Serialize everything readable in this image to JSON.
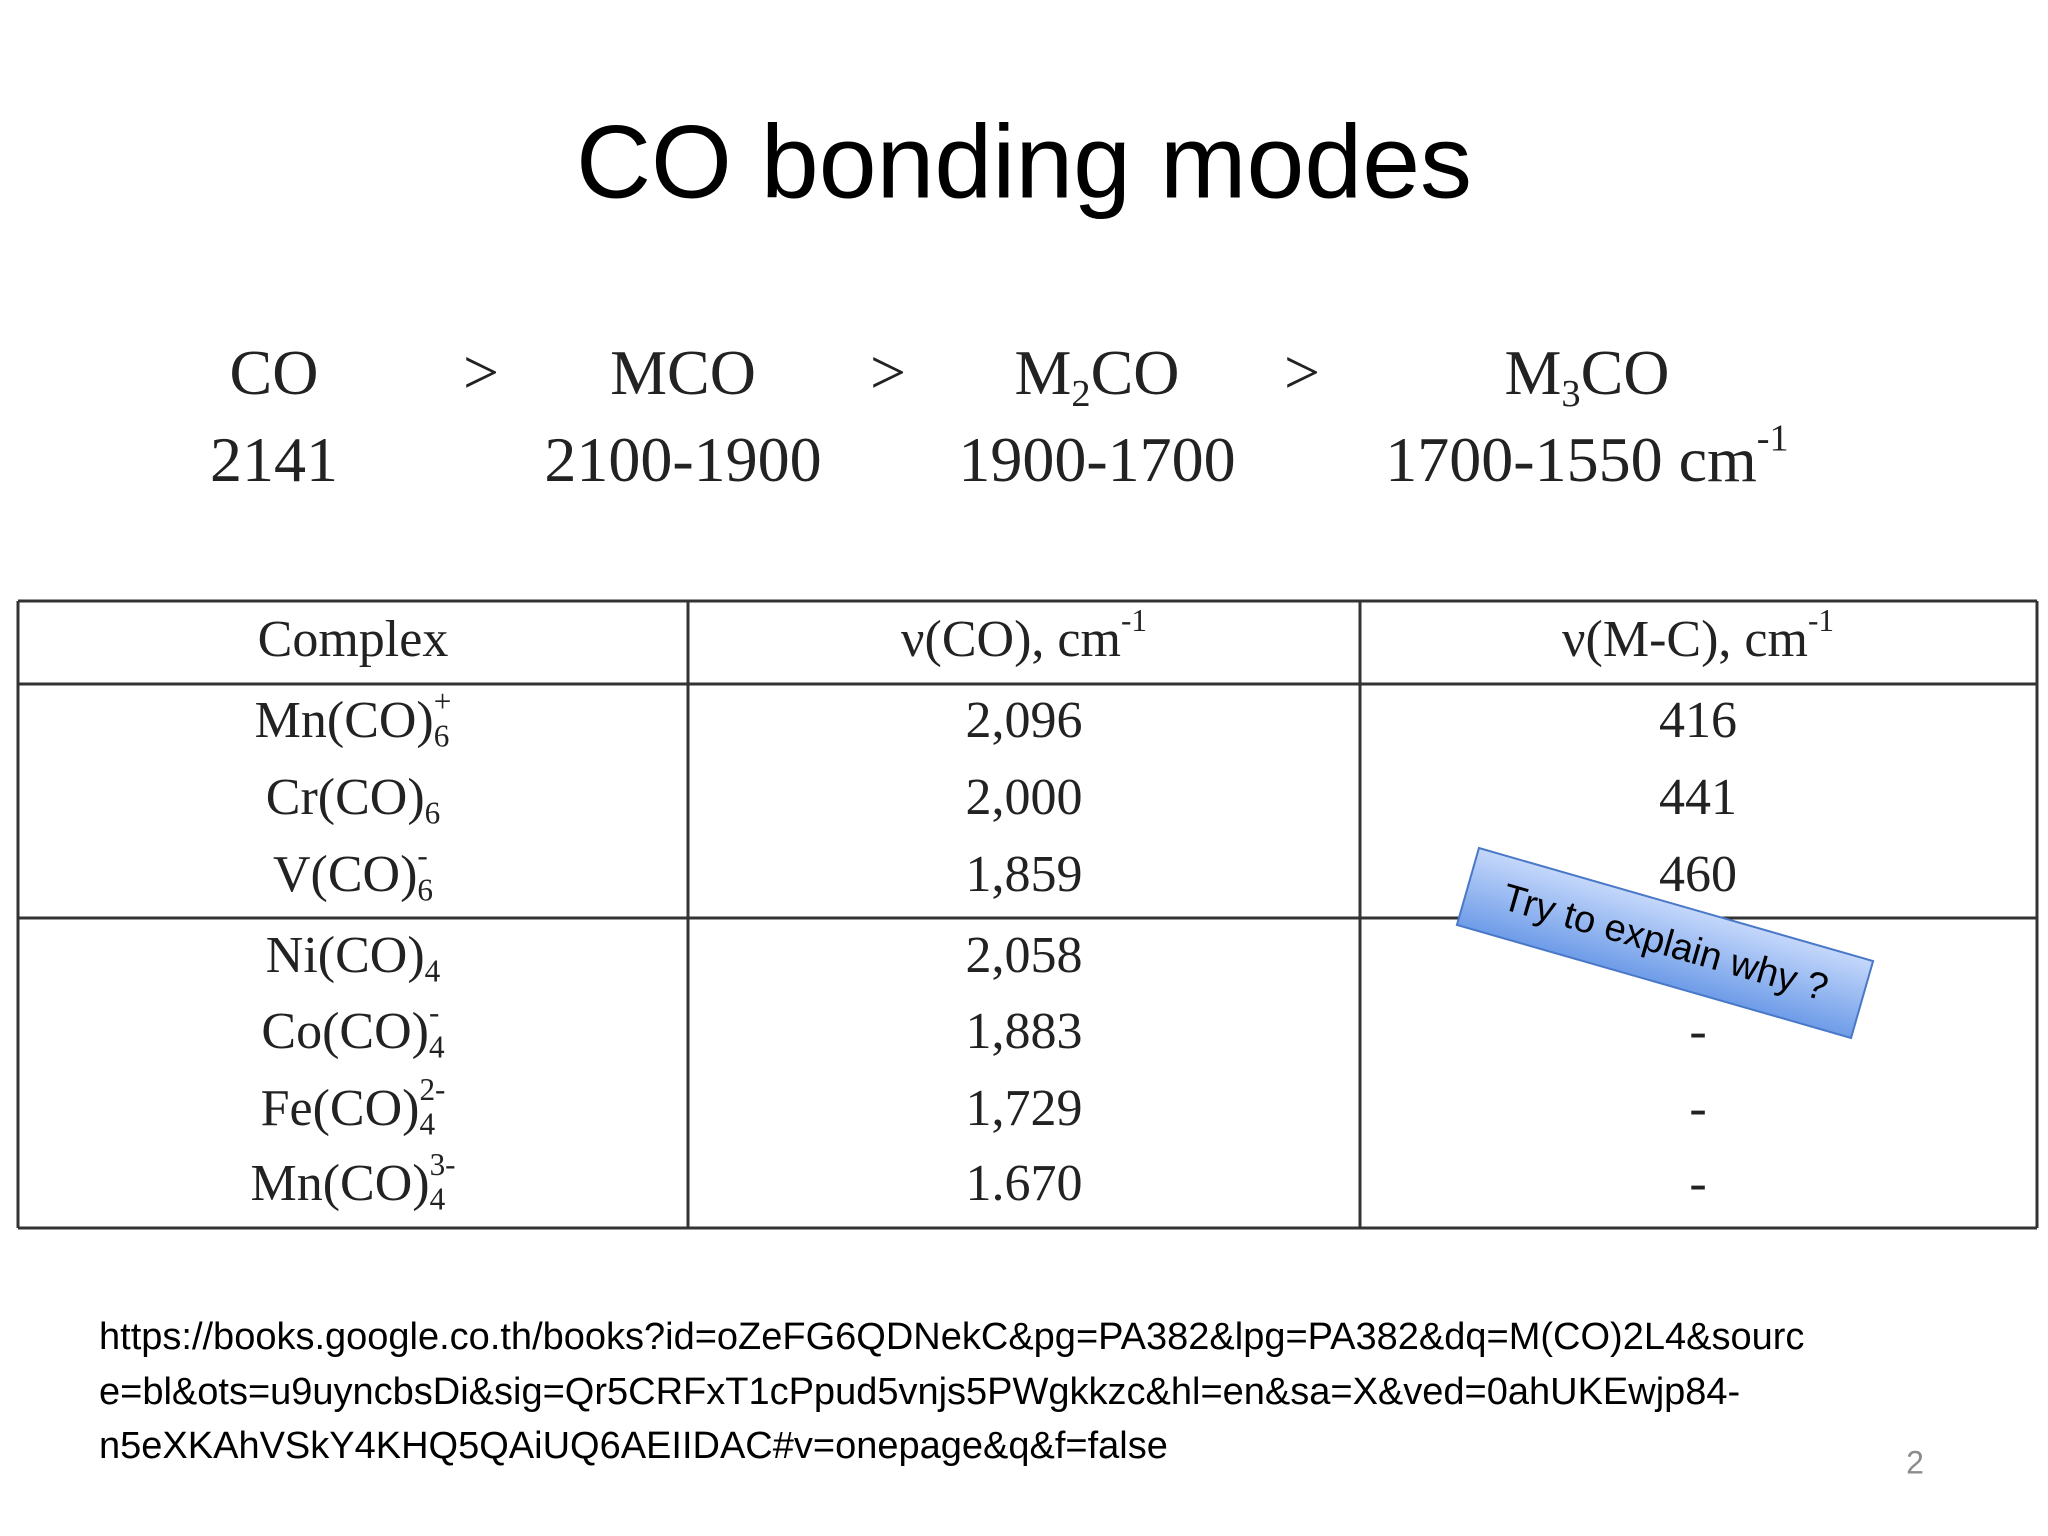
{
  "title": "CO bonding modes",
  "series_row": {
    "separator": ">",
    "items": [
      {
        "name": [
          {
            "text": "CO"
          }
        ],
        "value": [
          {
            "text": "2141"
          }
        ]
      },
      {
        "name": [
          {
            "text": "MCO"
          }
        ],
        "value": [
          {
            "text": "2100-1900"
          }
        ]
      },
      {
        "name": [
          {
            "text": "M"
          },
          {
            "text": "2",
            "pos": "sub"
          },
          {
            "text": "CO"
          }
        ],
        "value": [
          {
            "text": "1900-1700"
          }
        ]
      },
      {
        "name": [
          {
            "text": "M"
          },
          {
            "text": "3",
            "pos": "sub"
          },
          {
            "text": "CO"
          }
        ],
        "value": [
          {
            "text": "1700-1550 cm"
          },
          {
            "text": "-1",
            "pos": "sup"
          }
        ]
      }
    ]
  },
  "table": {
    "header": [
      [
        {
          "text": "Complex"
        }
      ],
      [
        {
          "text": "ν(CO), cm"
        },
        {
          "text": "-1",
          "pos": "sup"
        }
      ],
      [
        {
          "text": "ν(M-C), cm"
        },
        {
          "text": "-1",
          "pos": "sup"
        }
      ]
    ],
    "rows": [
      [
        [
          {
            "text": "Mn(CO)"
          },
          {
            "text": "6",
            "pos": "sub"
          },
          {
            "text": "+",
            "pos": "sup"
          }
        ],
        "2,096",
        "416"
      ],
      [
        [
          {
            "text": "Cr(CO)"
          },
          {
            "text": "6",
            "pos": "sub"
          }
        ],
        "2,000",
        "441"
      ],
      [
        [
          {
            "text": "V(CO)"
          },
          {
            "text": "6",
            "pos": "sub"
          },
          {
            "text": "-",
            "pos": "sup"
          }
        ],
        "1,859",
        "460"
      ],
      [
        [
          {
            "text": "Ni(CO)"
          },
          {
            "text": "4",
            "pos": "sub"
          }
        ],
        "2,058",
        null
      ],
      [
        [
          {
            "text": "Co(CO)"
          },
          {
            "text": "4",
            "pos": "sub"
          },
          {
            "text": "-",
            "pos": "sup"
          }
        ],
        "1,883",
        "-"
      ],
      [
        [
          {
            "text": "Fe(CO)"
          },
          {
            "text": "4",
            "pos": "sub"
          },
          {
            "text": "2-",
            "pos": "sup"
          }
        ],
        "1,729",
        "-"
      ],
      [
        [
          {
            "text": "Mn(CO)"
          },
          {
            "text": "4",
            "pos": "sub"
          },
          {
            "text": "3-",
            "pos": "sup"
          }
        ],
        "1.670",
        "-"
      ]
    ]
  },
  "callout": "Try to explain why ?",
  "source_lines": [
    "https://books.google.co.th/books?id=oZeFG6QDNekC&pg=PA382&lpg=PA382&dq=M(CO)2L4&sourc",
    "e=bl&ots=u9uyncbsDi&sig=Qr5CRFxT1cPpud5vnjs5PWgkkzc&hl=en&sa=X&ved=0ahUKEwjp84-",
    "n5eXKAhVSkY4KHQ5QAiUQ6AEIIDAC#v=onepage&q&f=false"
  ],
  "page_number": "2"
}
